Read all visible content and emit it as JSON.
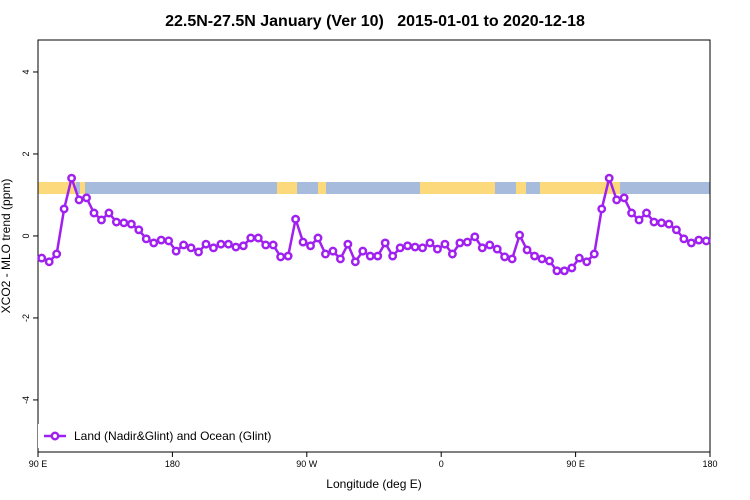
{
  "chart_data": {
    "type": "line",
    "title": "22.5N-27.5N January (Ver 10)   2015-01-01 to 2020-12-18",
    "xlabel": "Longitude (deg E)",
    "ylabel": "XCO2 - MLO trend (ppm)",
    "xlim": [
      90,
      540
    ],
    "ylim": [
      -5.27,
      4.78
    ],
    "xticks": [
      {
        "value": 90,
        "label": "90 E"
      },
      180,
      {
        "value": 270,
        "label": "90 W"
      },
      {
        "value": 360,
        "label": "0"
      },
      {
        "value": 450,
        "label": "90 E"
      },
      {
        "value": 540,
        "label": "180"
      }
    ],
    "yticks": [
      -4,
      -2,
      0,
      2,
      4
    ],
    "legend": "bottom-left",
    "x": [
      92.5,
      97.5,
      102.5,
      107.5,
      112.5,
      117.5,
      122.5,
      127.5,
      132.5,
      137.5,
      142.5,
      147.5,
      152.5,
      157.5,
      162.5,
      167.5,
      172.5,
      177.5,
      182.5,
      187.5,
      192.5,
      197.5,
      202.5,
      207.5,
      212.5,
      217.5,
      222.5,
      227.5,
      232.5,
      237.5,
      242.5,
      247.5,
      252.5,
      257.5,
      262.5,
      267.5,
      272.5,
      277.5,
      282.5,
      287.5,
      292.5,
      297.5,
      302.5,
      307.5,
      312.5,
      317.5,
      322.5,
      327.5,
      332.5,
      337.5,
      342.5,
      347.5,
      352.5,
      357.5,
      362.5,
      367.5,
      372.5,
      377.5,
      382.5,
      387.5,
      392.5,
      397.5,
      402.5,
      407.5,
      412.5,
      417.5,
      422.5,
      427.5,
      432.5,
      437.5,
      442.5,
      447.5,
      452.5,
      457.5,
      462.5,
      467.5,
      472.5,
      477.5,
      482.5,
      487.5,
      492.5,
      497.5,
      502.5,
      507.5,
      512.5,
      517.5,
      522.5,
      527.5,
      532.5,
      537.5
    ],
    "series": [
      {
        "name": "Land (Nadir&Glint) and Ocean (Glint)",
        "color": "#a020f0",
        "values": [
          -0.54,
          -0.63,
          -0.44,
          0.66,
          1.41,
          0.88,
          0.93,
          0.56,
          0.39,
          0.56,
          0.34,
          0.32,
          0.29,
          0.15,
          -0.07,
          -0.17,
          -0.1,
          -0.12,
          -0.37,
          -0.22,
          -0.29,
          -0.39,
          -0.2,
          -0.29,
          -0.2,
          -0.2,
          -0.27,
          -0.24,
          -0.05,
          -0.05,
          -0.22,
          -0.22,
          -0.51,
          -0.49,
          0.41,
          -0.15,
          -0.24,
          -0.05,
          -0.44,
          -0.37,
          -0.56,
          -0.2,
          -0.63,
          -0.37,
          -0.49,
          -0.49,
          -0.17,
          -0.49,
          -0.29,
          -0.24,
          -0.27,
          -0.29,
          -0.17,
          -0.32,
          -0.2,
          -0.44,
          -0.17,
          -0.15,
          -0.02,
          -0.29,
          -0.22,
          -0.32,
          -0.51,
          -0.56,
          0.02,
          -0.34,
          -0.49,
          -0.56,
          -0.61,
          -0.85,
          -0.85,
          -0.78,
          -0.54,
          -0.63,
          -0.44,
          0.66,
          1.41,
          0.88,
          0.93,
          0.56,
          0.39,
          0.56,
          0.34,
          0.32,
          0.29,
          0.15,
          -0.07,
          -0.17,
          -0.1,
          -0.12
        ]
      }
    ]
  }
}
